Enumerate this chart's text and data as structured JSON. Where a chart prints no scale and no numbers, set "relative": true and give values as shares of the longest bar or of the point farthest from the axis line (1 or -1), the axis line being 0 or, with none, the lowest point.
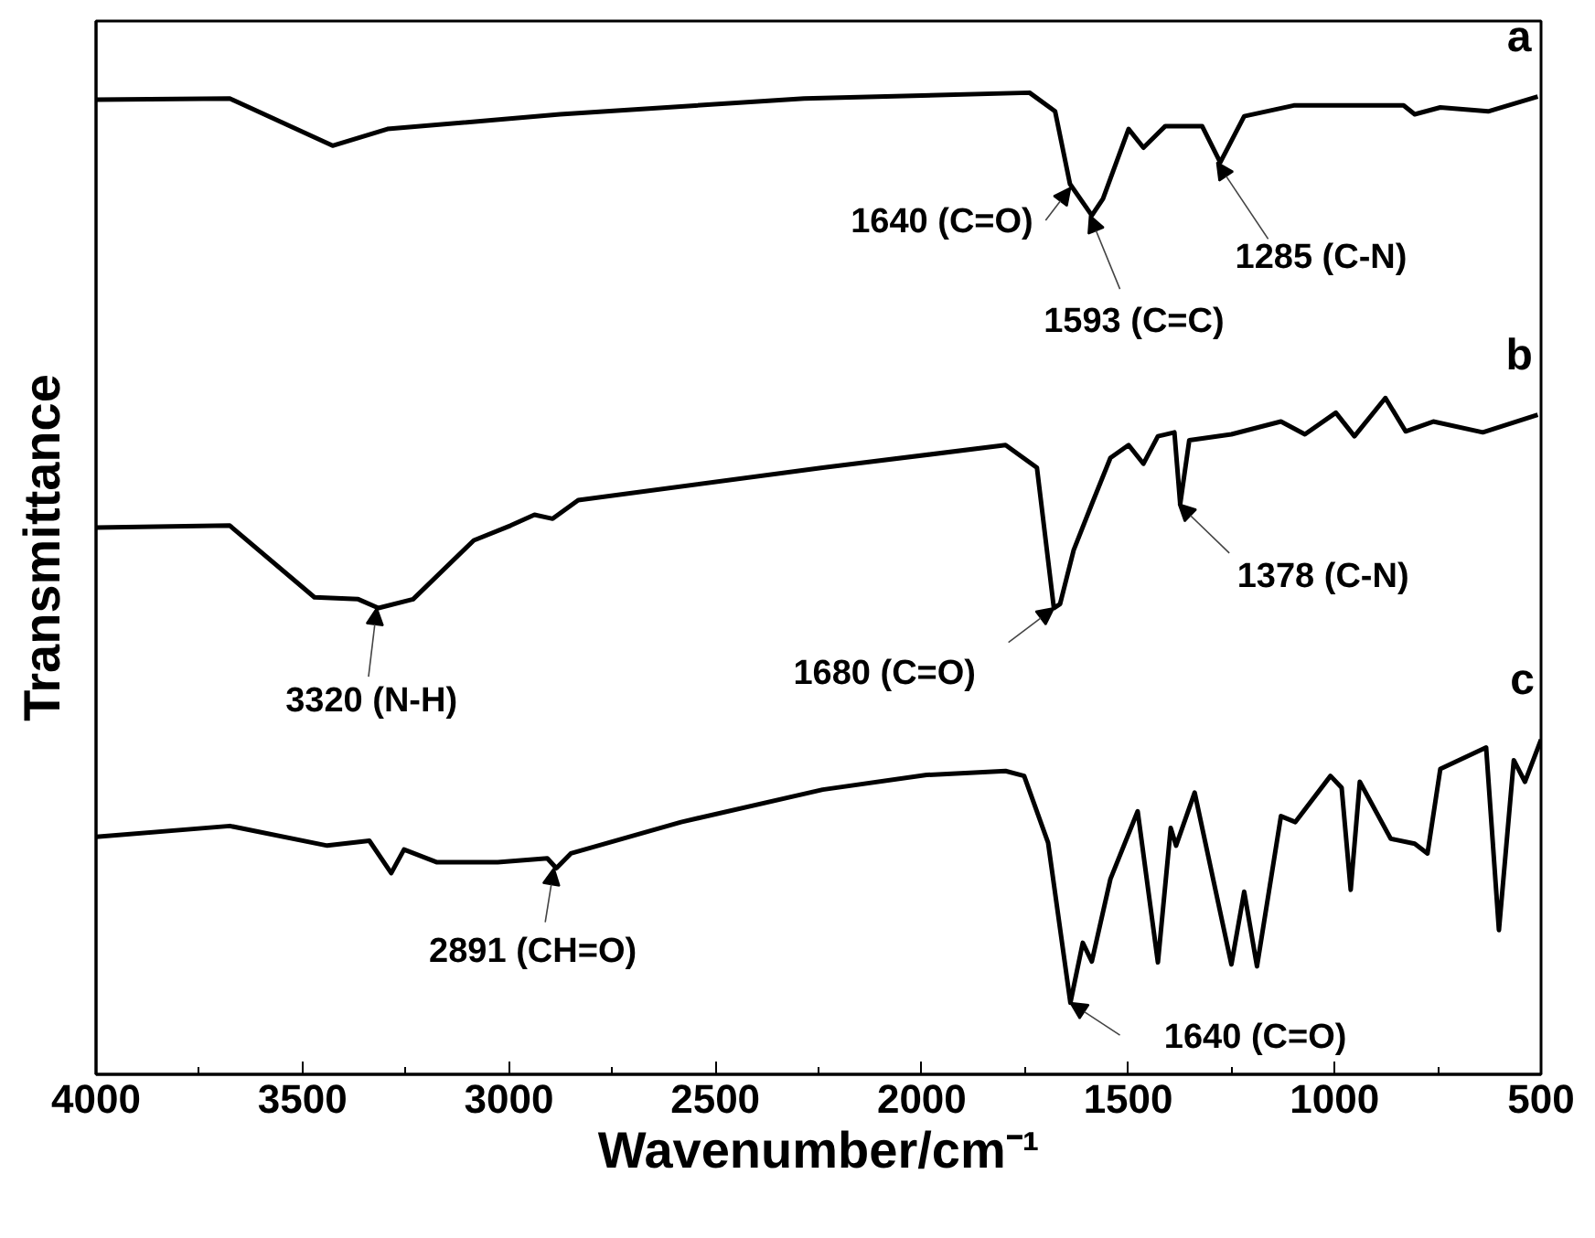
{
  "chart_data": {
    "type": "line",
    "relative": true,
    "xlabel": "Wavenumber/cm⁻¹",
    "ylabel": "Transmittance",
    "xlim": [
      4000,
      500
    ],
    "xticks": [
      4000,
      {
        "value": 3750,
        "label": null
      },
      3500,
      {
        "value": 3250,
        "label": null
      },
      3000,
      {
        "value": 2750,
        "label": null
      },
      2500,
      {
        "value": 2250,
        "label": null
      },
      2000,
      {
        "value": 1750,
        "label": null
      },
      1500,
      {
        "value": 1250,
        "label": null
      },
      1000,
      {
        "value": 750,
        "label": null
      },
      500
    ],
    "series": [
      {
        "name": "a",
        "color": "#000000",
        "x": [
          4000,
          3676,
          3427,
          3294,
          2876,
          2285,
          1739,
          1677,
          1641,
          1588,
          1561,
          1499,
          1463,
          1410,
          1321,
          1277,
          1219,
          1099,
          833,
          806,
          744,
          628,
          508
        ],
        "values": [
          0.993,
          0.994,
          0.946,
          0.963,
          0.978,
          0.994,
          1.0,
          0.981,
          0.907,
          0.875,
          0.892,
          0.963,
          0.944,
          0.966,
          0.966,
          0.929,
          0.976,
          0.987,
          0.987,
          0.978,
          0.985,
          0.981,
          0.996
        ]
      },
      {
        "name": "b",
        "color": "#000000",
        "x": [
          4000,
          3676,
          3471,
          3365,
          3316,
          3232,
          3085,
          2996,
          2938,
          2894,
          2832,
          2240,
          1797,
          1721,
          1680,
          1665,
          1632,
          1588,
          1543,
          1499,
          1463,
          1428,
          1388,
          1374,
          1352,
          1250,
          1130,
          1072,
          997,
          952,
          877,
          828,
          761,
          641,
          508
        ],
        "values": [
          0.557,
          0.559,
          0.486,
          0.484,
          0.475,
          0.484,
          0.544,
          0.559,
          0.57,
          0.566,
          0.585,
          0.618,
          0.641,
          0.618,
          0.475,
          0.479,
          0.534,
          0.581,
          0.628,
          0.641,
          0.622,
          0.65,
          0.654,
          0.581,
          0.646,
          0.652,
          0.665,
          0.652,
          0.674,
          0.65,
          0.689,
          0.655,
          0.665,
          0.654,
          0.672
        ]
      },
      {
        "name": "c",
        "color": "#000000",
        "x": [
          4000,
          3676,
          3440,
          3338,
          3285,
          3254,
          3174,
          3027,
          2907,
          2885,
          2850,
          2583,
          2240,
          1988,
          1797,
          1752,
          1694,
          1640,
          1610,
          1588,
          1543,
          1477,
          1428,
          1397,
          1384,
          1339,
          1250,
          1219,
          1188,
          1130,
          1095,
          1010,
          983,
          961,
          939,
          864,
          806,
          775,
          744,
          633,
          602,
          566,
          539,
          500
        ],
        "values": [
          0.242,
          0.253,
          0.233,
          0.238,
          0.205,
          0.229,
          0.216,
          0.216,
          0.22,
          0.21,
          0.225,
          0.257,
          0.29,
          0.305,
          0.309,
          0.304,
          0.236,
          0.073,
          0.134,
          0.115,
          0.199,
          0.268,
          0.114,
          0.251,
          0.233,
          0.287,
          0.112,
          0.186,
          0.11,
          0.263,
          0.257,
          0.304,
          0.292,
          0.188,
          0.298,
          0.24,
          0.235,
          0.225,
          0.311,
          0.333,
          0.147,
          0.32,
          0.298,
          0.341
        ]
      }
    ],
    "annotations": [
      {
        "text": "1640 (C=O)",
        "x": 1640,
        "y": 0.903
      },
      {
        "text": "1593 (C=C)",
        "x": 1593,
        "y": 0.875
      },
      {
        "text": "1285 (C-N)",
        "x": 1285,
        "y": 0.929
      },
      {
        "text": "3320 (N-H)",
        "x": 3320,
        "y": 0.475
      },
      {
        "text": "1680 (C=O)",
        "x": 1680,
        "y": 0.475
      },
      {
        "text": "1378 (C-N)",
        "x": 1378,
        "y": 0.581
      },
      {
        "text": "2891 (CH=O)",
        "x": 2891,
        "y": 0.21
      },
      {
        "text": "1640 (C=O)",
        "x": 1640,
        "y": 0.073
      }
    ]
  }
}
